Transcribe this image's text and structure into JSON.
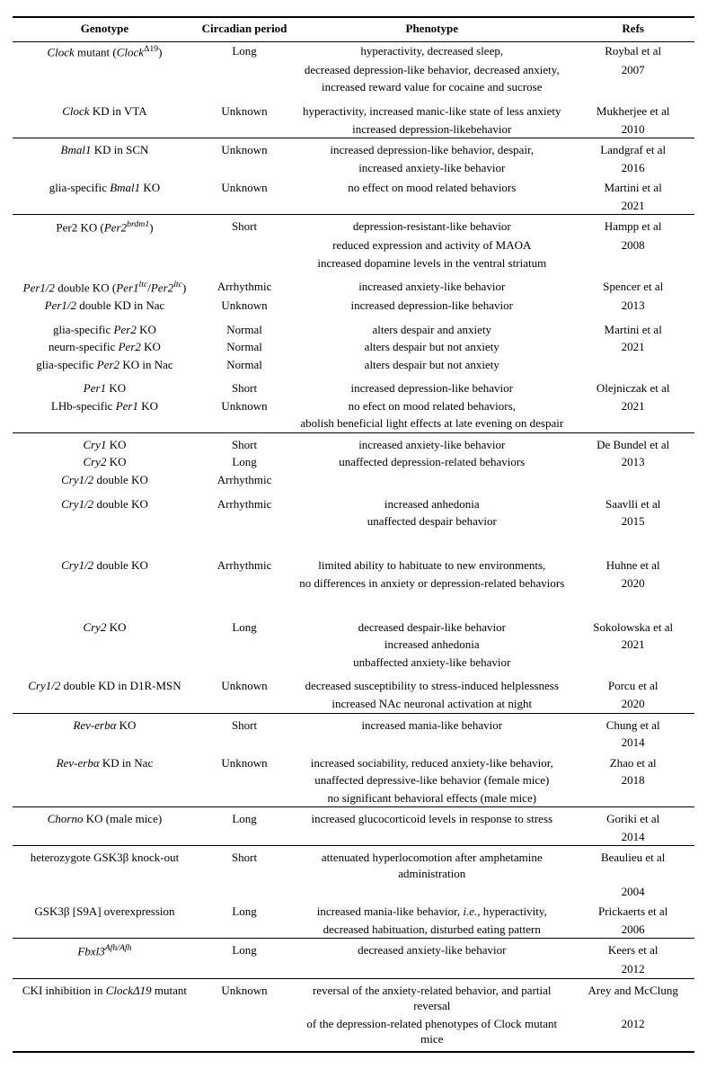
{
  "headers": {
    "genotype": "Genotype",
    "period": "Circadian period",
    "phenotype": "Phenotype",
    "refs": "Refs"
  },
  "sections": [
    {
      "rows": [
        {
          "genotype_html": "<span class='it'>Clock</span> mutant (<span class='it'>Clock</span><span class='sup-n'>&Delta;19</span>)",
          "period": "Long",
          "phenotype": [
            "hyperactivity, decreased sleep,",
            "decreased depression-like behavior, decreased anxiety,",
            "increased reward value for cocaine and sucrose"
          ],
          "ref": [
            "Roybal et al",
            "2007"
          ]
        },
        {
          "spacer": true,
          "genotype_html": "<span class='it'>Clock</span> KD in VTA",
          "period": "Unknown",
          "phenotype": [
            "hyperactivity, increased manic-like state of less anxiety",
            "increased depression-likebehavior"
          ],
          "ref": [
            "Mukherjee et al",
            "2010"
          ]
        }
      ]
    },
    {
      "rows": [
        {
          "genotype_html": "<span class='it'>Bmal1</span> KD in SCN",
          "period": "Unknown",
          "phenotype": [
            "increased depression-like behavior, despair,",
            "increased anxiety-like behavior"
          ],
          "ref": [
            "Landgraf et al",
            "2016"
          ]
        },
        {
          "spacer_sm": true,
          "genotype_html": "glia-specific <span class='it'>Bmal1</span> KO",
          "period": "Unknown",
          "phenotype": [
            "no effect on mood related behaviors"
          ],
          "ref": [
            "Martini et al",
            "2021"
          ]
        }
      ]
    },
    {
      "rows": [
        {
          "genotype_html": "Per2 KO (<span class='it'>Per2</span><span class='sup'>brdm1</span>)",
          "period": "Short",
          "phenotype": [
            "depression-resistant-like behavior",
            "reduced expression and activity of MAOA",
            "increased dopamine levels in the ventral striatum"
          ],
          "ref": [
            "Hampp et al",
            "2008"
          ]
        },
        {
          "spacer": true,
          "genotype_html": "<span class='it'>Per1/2</span> double KO (<span class='it'>Per1</span><span class='sup'>ltc</span>/<span class='it'>Per2</span><span class='sup'>ltc</span>)",
          "period": "Arrhythmic",
          "phenotype": [
            "increased anxiety-like behavior"
          ],
          "ref": [
            "Spencer et al"
          ]
        },
        {
          "genotype_html": "<span class='it'>Per1/2</span> double KD in Nac",
          "period": "Unknown",
          "phenotype": [
            "increased depression-like behavior"
          ],
          "ref": [
            "2013"
          ]
        },
        {
          "spacer": true,
          "genotype_html": "glia-specific <span class='it'>Per2</span> KO",
          "period": "Normal",
          "phenotype": [
            "alters despair and anxiety"
          ],
          "ref": [
            "Martini et al"
          ]
        },
        {
          "genotype_html": "neurn-specific <span class='it'>Per2</span> KO",
          "period": "Normal",
          "phenotype": [
            "alters despair but not anxiety"
          ],
          "ref": [
            "2021"
          ]
        },
        {
          "genotype_html": "glia-specific <span class='it'>Per2</span> KO in Nac",
          "period": "Normal",
          "phenotype": [
            "alters despair but not anxiety"
          ],
          "ref": []
        },
        {
          "spacer": true,
          "genotype_html": "<span class='it'>Per1</span> KO",
          "period": "Short",
          "phenotype": [
            "increased depression-like behavior"
          ],
          "ref": [
            "Olejniczak et al"
          ]
        },
        {
          "genotype_html": "LHb-specific <span class='it'>Per1</span> KO",
          "period": "Unknown",
          "phenotype": [
            "no efect on mood related behaviors,",
            "abolish beneficial light effects at late evening on despair"
          ],
          "ref": [
            "2021"
          ]
        }
      ]
    },
    {
      "rows": [
        {
          "genotype_html": "<span class='it'>Cry1</span> KO",
          "period": "Short",
          "phenotype": [
            "increased anxiety-like behavior"
          ],
          "ref": [
            "De Bundel et al"
          ]
        },
        {
          "genotype_html": "<span class='it'>Cry2</span> KO",
          "period": "Long",
          "phenotype": [
            "unaffected depression-related behaviors"
          ],
          "ref": [
            "2013"
          ]
        },
        {
          "genotype_html": "<span class='it'>Cry1/2</span> double KO",
          "period": "Arrhythmic",
          "phenotype": [
            ""
          ],
          "ref": []
        },
        {
          "spacer": true,
          "genotype_html": "<span class='it'>Cry1/2</span> double KO",
          "period": "Arrhythmic",
          "phenotype": [
            "increased anhedonia",
            "unaffected despair behavior"
          ],
          "ref": [
            "Saavlli et al",
            "2015"
          ]
        },
        {
          "spacer": true,
          "genotype_html": "&nbsp;",
          "period": "",
          "phenotype": [
            ""
          ],
          "ref": []
        },
        {
          "spacer_sm": true,
          "genotype_html": "<span class='it'>Cry1/2</span> double KO",
          "period": "Arrhythmic",
          "phenotype": [
            "limited ability to habituate to new environments,",
            "no differences in anxiety or depression-related behaviors"
          ],
          "ref": [
            "Huhne et al",
            "2020"
          ]
        },
        {
          "spacer": true,
          "genotype_html": "&nbsp;",
          "period": "",
          "phenotype": [
            ""
          ],
          "ref": []
        },
        {
          "spacer_sm": true,
          "genotype_html": "<span class='it'>Cry2</span> KO",
          "period": "Long",
          "phenotype": [
            "decreased despair-like behavior",
            "increased anhedonia",
            "unbaffected anxiety-like behavior"
          ],
          "ref": [
            "Sokolowska et al",
            "2021"
          ]
        },
        {
          "spacer": true,
          "genotype_html": "<span class='it'>Cry1/2</span> double KD in D1R-MSN",
          "period": "Unknown",
          "phenotype": [
            "decreased susceptibility to stress-induced helplessness",
            "increased NAc neuronal activation at night"
          ],
          "ref": [
            "Porcu et al",
            "2020"
          ]
        }
      ]
    },
    {
      "rows": [
        {
          "genotype_html": "<span class='it'>Rev-erb&alpha;</span> KO",
          "period": "Short",
          "phenotype": [
            "increased mania-like behavior"
          ],
          "ref": [
            "Chung et al",
            "2014"
          ]
        },
        {
          "spacer_sm": true,
          "genotype_html": "<span class='it'>Rev-erb&alpha;</span> KD in Nac",
          "period": "Unknown",
          "phenotype": [
            "increased sociability, reduced anxiety-like behavior,",
            "unaffected depressive-like behavior (female mice)",
            "no significant behavioral effects (male mice)"
          ],
          "ref": [
            "Zhao et al",
            "2018"
          ]
        }
      ]
    },
    {
      "rows": [
        {
          "genotype_html": "<span class='it'>Chorno</span> KO (male mice)",
          "period": "Long",
          "phenotype": [
            "increased glucocorticoid levels in response to stress"
          ],
          "ref": [
            "Goriki et al",
            "2014"
          ]
        }
      ]
    },
    {
      "rows": [
        {
          "genotype_html": "heterozygote GSK3&beta; knock-out",
          "period": "Short",
          "phenotype": [
            "attenuated hyperlocomotion after amphetamine administration"
          ],
          "ref": [
            "Beaulieu et al",
            "2004"
          ]
        },
        {
          "spacer_sm": true,
          "genotype_html": "GSK3&beta; [S9A] overexpression",
          "period": "Long",
          "phenotype": [
            "increased mania-like behavior, <span class='it'>i.e.</span>, hyperactivity,",
            "decreased habituation, disturbed eating pattern"
          ],
          "ref": [
            "Prickaerts et al",
            "2006"
          ]
        }
      ]
    },
    {
      "rows": [
        {
          "genotype_html": "<span class='it'>Fbxl3</span><span class='sup'>Afh/Afh</span>",
          "period": "Long",
          "phenotype": [
            "decreased anxiety-like behavior"
          ],
          "ref": [
            "Keers et al",
            "2012"
          ]
        }
      ]
    },
    {
      "end": true,
      "rows": [
        {
          "genotype_html": "CKI inhibition in <span class='it'>Clock&Delta;19</span> mutant",
          "period": "Unknown",
          "phenotype": [
            "reversal of the anxiety-related behavior, and partial reversal",
            "of the depression-related phenotypes of Clock mutant mice"
          ],
          "ref": [
            "Arey and McClung",
            "2012"
          ]
        }
      ]
    }
  ]
}
